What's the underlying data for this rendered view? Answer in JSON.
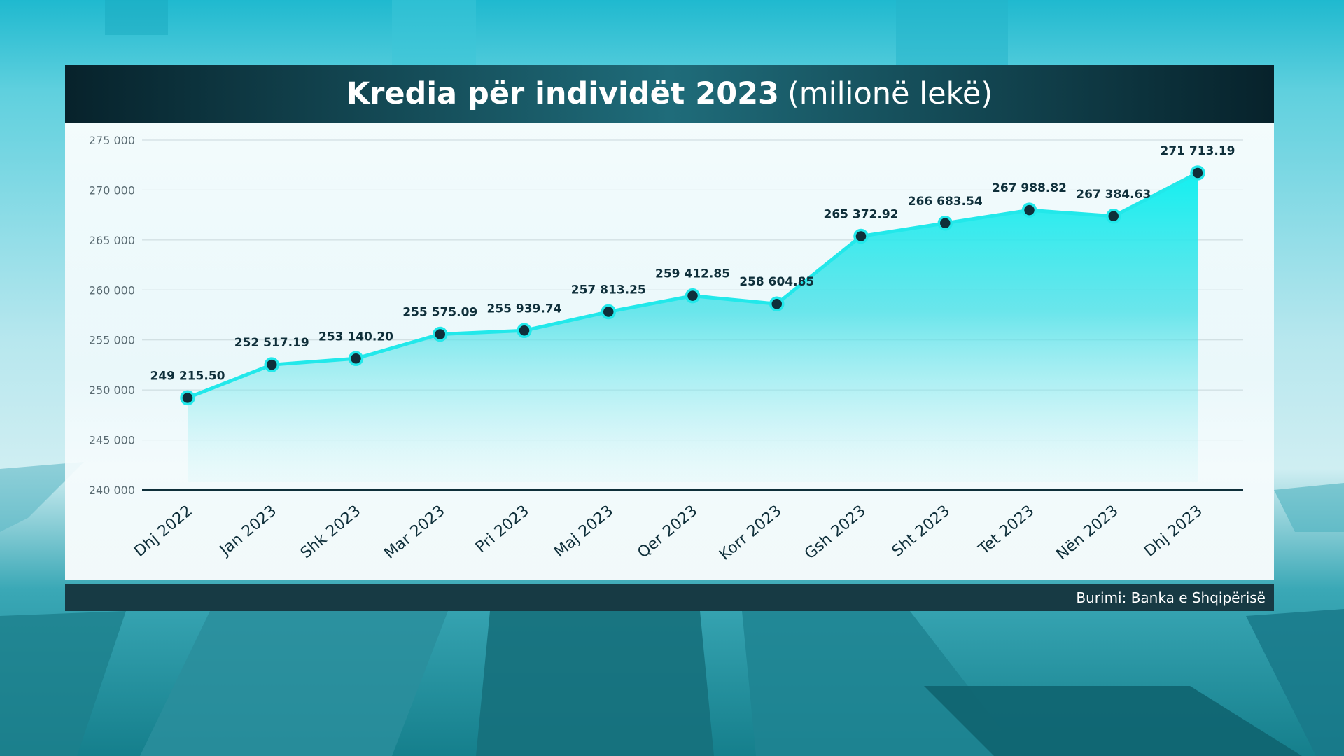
{
  "title": {
    "bold": "Kredia për individët 2023",
    "light": "(milionë lekë)"
  },
  "footer": {
    "source": "Burimi: Banka e Shqipërisë"
  },
  "colors": {
    "line": "#22e8ea",
    "marker": "#0f2f3a",
    "area_top": "#14f0f0",
    "axis_text": "#5a6b72",
    "label_text": "#0f2f3a"
  },
  "chart_data": {
    "type": "area",
    "categories": [
      "Dhj 2022",
      "Jan 2023",
      "Shk 2023",
      "Mar 2023",
      "Pri 2023",
      "Maj 2023",
      "Qer 2023",
      "Korr 2023",
      "Gsh 2023",
      "Sht 2023",
      "Tet 2023",
      "Nën 2023",
      "Dhj 2023"
    ],
    "values": [
      249215.5,
      252517.19,
      253140.2,
      255575.09,
      255939.74,
      257813.25,
      259412.85,
      258604.85,
      265372.92,
      266683.54,
      267988.82,
      267384.63,
      271713.19
    ],
    "value_labels": [
      "249 215.50",
      "252 517.19",
      "253 140.20",
      "255 575.09",
      "255 939.74",
      "257 813.25",
      "259 412.85",
      "258 604.85",
      "265 372.92",
      "266 683.54",
      "267 988.82",
      "267 384.63",
      "271 713.19"
    ],
    "ylim": [
      240000,
      275000
    ],
    "yticks": [
      240000,
      245000,
      250000,
      255000,
      260000,
      265000,
      270000,
      275000
    ],
    "ytick_labels": [
      "240 000",
      "245 000",
      "250 000",
      "255 000",
      "260 000",
      "265 000",
      "270 000",
      "275 000"
    ],
    "grid": true,
    "legend": "none"
  }
}
